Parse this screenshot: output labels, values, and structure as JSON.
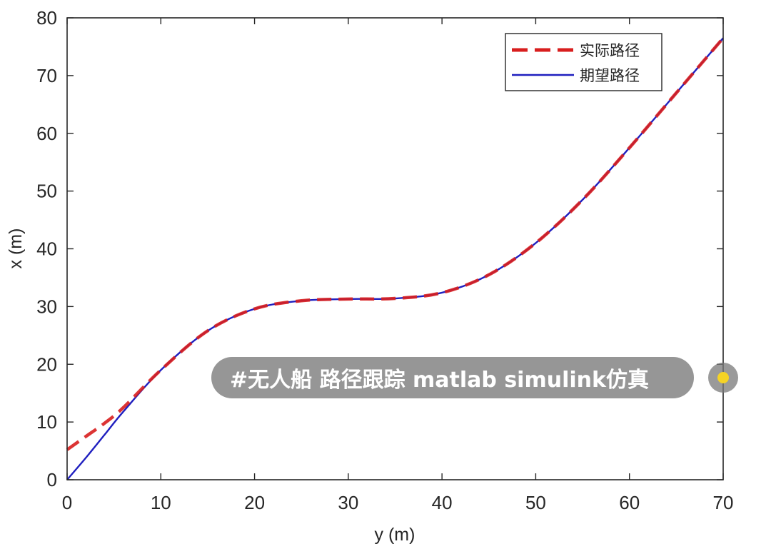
{
  "chart_data": {
    "type": "line",
    "xlabel": "y (m)",
    "ylabel": "x (m)",
    "xlim": [
      0,
      70
    ],
    "ylim": [
      0,
      80
    ],
    "xticks": [
      0,
      10,
      20,
      30,
      40,
      50,
      60,
      70
    ],
    "yticks": [
      0,
      10,
      20,
      30,
      40,
      50,
      60,
      70,
      80
    ],
    "grid": false,
    "legend_position": "top-right",
    "series": [
      {
        "name": "实际路径",
        "style": "dashed",
        "color": "#d81e1e",
        "x": [
          0,
          2,
          4,
          6,
          10,
          15,
          20,
          25,
          30,
          35,
          40,
          45,
          50,
          55,
          60,
          65,
          70
        ],
        "y": [
          5.2,
          7.5,
          9.8,
          12.5,
          19.0,
          25.8,
          29.6,
          31.0,
          31.3,
          31.4,
          32.4,
          35.5,
          41.0,
          48.5,
          57.5,
          67.0,
          76.5
        ]
      },
      {
        "name": "期望路径",
        "style": "solid",
        "color": "#1f1fbf",
        "x": [
          0,
          2,
          4,
          6,
          10,
          15,
          20,
          25,
          30,
          35,
          40,
          45,
          50,
          55,
          60,
          65,
          70
        ],
        "y": [
          0,
          3.8,
          7.8,
          11.8,
          19.0,
          25.8,
          29.6,
          31.0,
          31.3,
          31.4,
          32.4,
          35.5,
          41.0,
          48.5,
          57.5,
          67.0,
          76.5
        ]
      }
    ]
  },
  "overlay": {
    "tag_text": "#无人船 路径跟踪 matlab simulink仿真",
    "dot_color": "#f5d325"
  }
}
